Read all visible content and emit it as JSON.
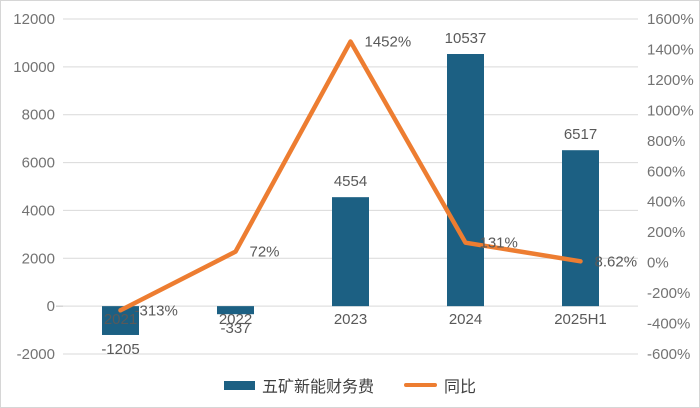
{
  "window": {
    "background": "#ffffff",
    "border_color": "#d6d6d6"
  },
  "chart_data": {
    "type": "combo-bar-line-dual-axis",
    "title": "",
    "categories": [
      "2021",
      "2022",
      "2023",
      "2024",
      "2025H1"
    ],
    "series": [
      {
        "name": "五矿新能财务费",
        "type": "bar",
        "axis": "left",
        "color": "#1c6083",
        "values": [
          -1205,
          -337,
          4554,
          10537,
          6517
        ],
        "labels": [
          "-1205",
          "-337",
          "4554",
          "10537",
          "6517"
        ]
      },
      {
        "name": "同比",
        "type": "line",
        "axis": "right",
        "color": "#ed7d31",
        "values": [
          -313,
          72,
          1452,
          131,
          8.62
        ],
        "labels": [
          "-313%",
          "72%",
          "1452%",
          "131%",
          "8.62%"
        ]
      }
    ],
    "left_axis": {
      "min": -2000,
      "max": 12000,
      "step": 2000,
      "tick_labels": [
        "-2000",
        "0",
        "2000",
        "4000",
        "6000",
        "8000",
        "10000",
        "12000"
      ]
    },
    "right_axis": {
      "min": -600,
      "max": 1600,
      "step": 200,
      "tick_labels": [
        "-600%",
        "-400%",
        "-200%",
        "0%",
        "200%",
        "400%",
        "600%",
        "800%",
        "1000%",
        "1200%",
        "1400%",
        "1600%"
      ]
    },
    "grid": true,
    "legend_position": "bottom"
  },
  "colors": {
    "grid": "#d9d9d9",
    "zero_line": "#bfbfbf",
    "axis_tick_text": "#737373",
    "data_label_text": "#595959",
    "category_label_text": "#595959",
    "legend_text": "#404040"
  }
}
